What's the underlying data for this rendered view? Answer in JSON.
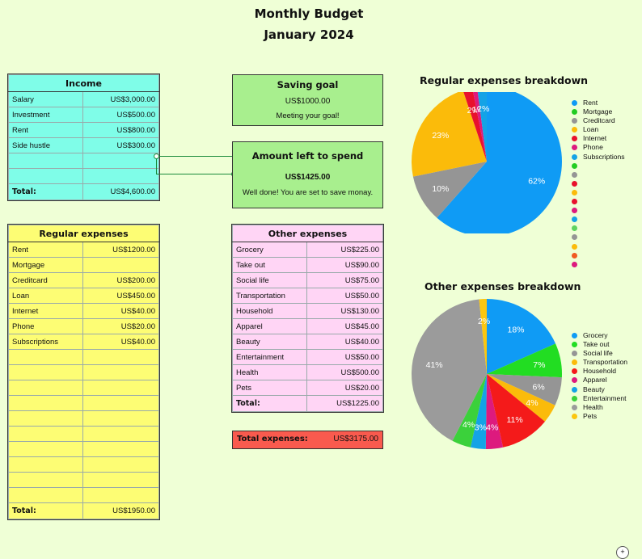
{
  "header": {
    "title": "Monthly Budget",
    "subtitle": "January 2024"
  },
  "income": {
    "title": "Income",
    "rows": [
      {
        "label": "Salary",
        "amount": "US$3,000.00"
      },
      {
        "label": "Investment",
        "amount": "US$500.00"
      },
      {
        "label": "Rent",
        "amount": "US$800.00"
      },
      {
        "label": "Side hustle",
        "amount": "US$300.00"
      },
      {
        "label": "",
        "amount": ""
      },
      {
        "label": "",
        "amount": ""
      }
    ],
    "total_label": "Total:",
    "total_amount": "US$4,600.00"
  },
  "saving_goal": {
    "title": "Saving goal",
    "value": "US$1000.00",
    "message": "Meeting your goal!"
  },
  "amount_left": {
    "title": "Amount left to spend",
    "value": "US$1425.00",
    "message": "Well done! You are set to save monay."
  },
  "regular_expenses": {
    "title": "Regular expenses",
    "rows": [
      {
        "label": "Rent",
        "amount": "US$1200.00"
      },
      {
        "label": "Mortgage",
        "amount": ""
      },
      {
        "label": "Creditcard",
        "amount": "US$200.00"
      },
      {
        "label": "Loan",
        "amount": "US$450.00"
      },
      {
        "label": "Internet",
        "amount": "US$40.00"
      },
      {
        "label": "Phone",
        "amount": "US$20.00"
      },
      {
        "label": "Subscriptions",
        "amount": "US$40.00"
      },
      {
        "label": "",
        "amount": ""
      },
      {
        "label": "",
        "amount": ""
      },
      {
        "label": "",
        "amount": ""
      },
      {
        "label": "",
        "amount": ""
      },
      {
        "label": "",
        "amount": ""
      },
      {
        "label": "",
        "amount": ""
      },
      {
        "label": "",
        "amount": ""
      },
      {
        "label": "",
        "amount": ""
      },
      {
        "label": "",
        "amount": ""
      },
      {
        "label": "",
        "amount": ""
      }
    ],
    "total_label": "Total:",
    "total_amount": "US$1950.00"
  },
  "other_expenses": {
    "title": "Other expenses",
    "rows": [
      {
        "label": "Grocery",
        "amount": "US$225.00"
      },
      {
        "label": "Take out",
        "amount": "US$90.00"
      },
      {
        "label": "Social life",
        "amount": "US$75.00"
      },
      {
        "label": "Transportation",
        "amount": "US$50.00"
      },
      {
        "label": "Household",
        "amount": "US$130.00"
      },
      {
        "label": "Apparel",
        "amount": "US$45.00"
      },
      {
        "label": "Beauty",
        "amount": "US$40.00"
      },
      {
        "label": "Entertainment",
        "amount": "US$50.00"
      },
      {
        "label": "Health",
        "amount": "US$500.00"
      },
      {
        "label": "Pets",
        "amount": "US$20.00"
      }
    ],
    "total_label": "Total:",
    "total_amount": "US$1225.00"
  },
  "total_expenses": {
    "label": "Total expenses:",
    "amount": "US$3175.00"
  },
  "chart_data": [
    {
      "type": "pie",
      "title": "Regular expenses breakdown",
      "legend_position": "right",
      "slices": [
        {
          "label": "Rent",
          "value": 1200,
          "percent": "62%",
          "color": "#0f9bf5"
        },
        {
          "label": "Mortgage",
          "value": 0,
          "percent": "",
          "color": "#22cc22"
        },
        {
          "label": "Creditcard",
          "value": 200,
          "percent": "10%",
          "color": "#959595"
        },
        {
          "label": "Loan",
          "value": 450,
          "percent": "23%",
          "color": "#fbbb0a"
        },
        {
          "label": "Internet",
          "value": 40,
          "percent": "2%",
          "color": "#e8112d"
        },
        {
          "label": "Phone",
          "value": 20,
          "percent": "1%",
          "color": "#dd1a7e"
        },
        {
          "label": "Subscriptions",
          "value": 40,
          "percent": "2%",
          "color": "#14a3e6"
        }
      ],
      "extra_legend_colors": [
        "#22cc22",
        "#959595",
        "#e8112d",
        "#fbbb0a",
        "#e8112d",
        "#dd1a7e",
        "#14a3e6",
        "#5fd35f",
        "#959595",
        "#fbbb0a",
        "#f05a24",
        "#dd1a7e"
      ]
    },
    {
      "type": "pie",
      "title": "Other expenses breakdown",
      "legend_position": "right",
      "slices": [
        {
          "label": "Grocery",
          "value": 225,
          "percent": "18%",
          "color": "#0f9bf5"
        },
        {
          "label": "Take out",
          "value": 90,
          "percent": "7%",
          "color": "#22dd22"
        },
        {
          "label": "Social life",
          "value": 75,
          "percent": "6%",
          "color": "#959595"
        },
        {
          "label": "Transportation",
          "value": 50,
          "percent": "4%",
          "color": "#fbbb0a"
        },
        {
          "label": "Household",
          "value": 130,
          "percent": "11%",
          "color": "#f41a1a"
        },
        {
          "label": "Apparel",
          "value": 45,
          "percent": "4%",
          "color": "#dd1a7e"
        },
        {
          "label": "Beauty",
          "value": 40,
          "percent": "3%",
          "color": "#14a3e6"
        },
        {
          "label": "Entertainment",
          "value": 50,
          "percent": "4%",
          "color": "#3bd13b"
        },
        {
          "label": "Health",
          "value": 500,
          "percent": "41%",
          "color": "#9b9b9b"
        },
        {
          "label": "Pets",
          "value": 20,
          "percent": "2%",
          "color": "#fbc60f"
        }
      ]
    }
  ]
}
